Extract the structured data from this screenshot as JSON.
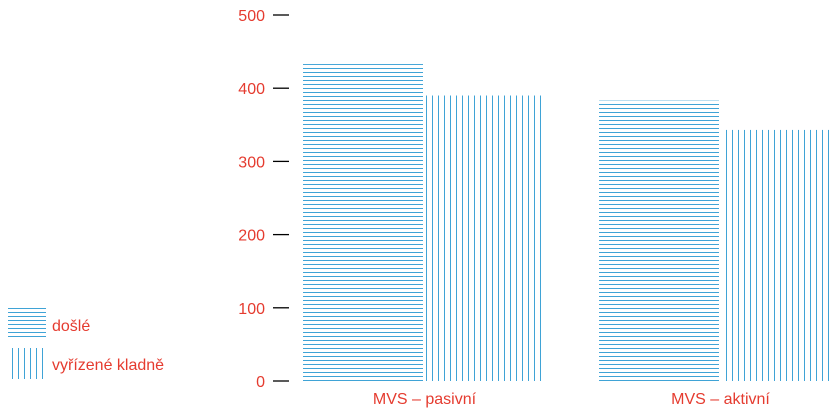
{
  "chart_data": {
    "type": "bar",
    "title": "",
    "xlabel": "",
    "ylabel": "",
    "ylim": [
      0,
      500
    ],
    "yticks": [
      0,
      100,
      200,
      300,
      400,
      500
    ],
    "categories": [
      "MVS – pasivní",
      "MVS – aktivní"
    ],
    "series": [
      {
        "name": "došlé",
        "values": [
          433,
          383
        ],
        "pattern": "horizontal-lines"
      },
      {
        "name": "vyřízené kladně",
        "values": [
          390,
          343
        ],
        "pattern": "vertical-lines"
      }
    ],
    "legend": "left-bottom",
    "grid": false
  },
  "colors": {
    "text": "#e53b2f",
    "hatch": "#3fa3d6",
    "axis": "#000000"
  },
  "legend_icons": [
    "horizontal-lines-swatch",
    "vertical-lines-swatch"
  ]
}
